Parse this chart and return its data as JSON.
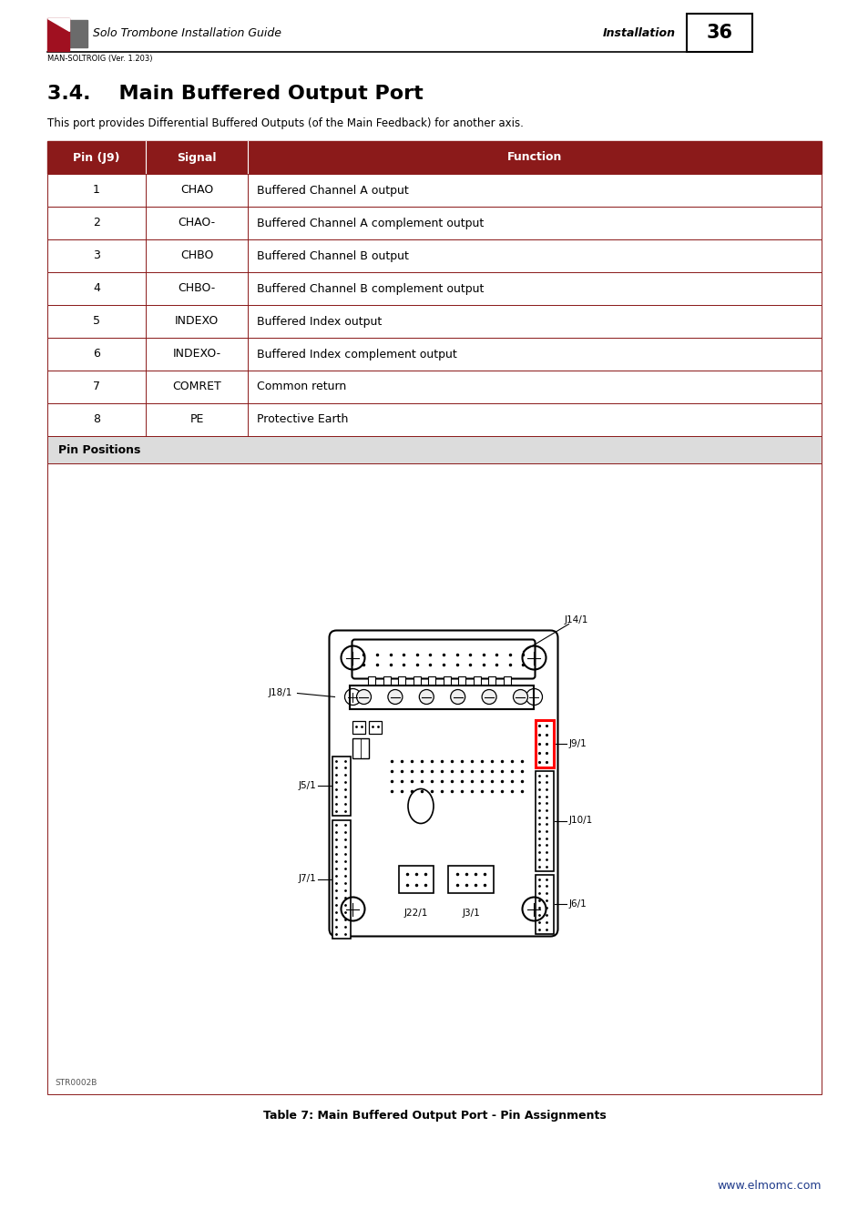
{
  "page_title": "3.4.    Main Buffered Output Port",
  "header_guide": "Solo Trombone Installation Guide",
  "header_section": "Installation",
  "header_version": "MAN-SOLTROIG (Ver. 1.203)",
  "page_number": "36",
  "intro_text": "This port provides Differential Buffered Outputs (of the Main Feedback) for another axis.",
  "table_header": [
    "Pin (J9)",
    "Signal",
    "Function"
  ],
  "table_header_bg": "#8B1A1A",
  "table_header_color": "#FFFFFF",
  "table_rows": [
    [
      "1",
      "CHAO",
      "Buffered Channel A output"
    ],
    [
      "2",
      "CHAO-",
      "Buffered Channel A complement output"
    ],
    [
      "3",
      "CHBO",
      "Buffered Channel B output"
    ],
    [
      "4",
      "CHBO-",
      "Buffered Channel B complement output"
    ],
    [
      "5",
      "INDEXO",
      "Buffered Index output"
    ],
    [
      "6",
      "INDEXO-",
      "Buffered Index complement output"
    ],
    [
      "7",
      "COMRET",
      "Common return"
    ],
    [
      "8",
      "PE",
      "Protective Earth"
    ]
  ],
  "pin_positions_label": "Pin Positions",
  "pin_positions_bg": "#DCDCDC",
  "table_border_color": "#8B1A1A",
  "caption": "Table 7: Main Buffered Output Port - Pin Assignments",
  "website": "www.elmomc.com",
  "website_color": "#1E3A8A"
}
